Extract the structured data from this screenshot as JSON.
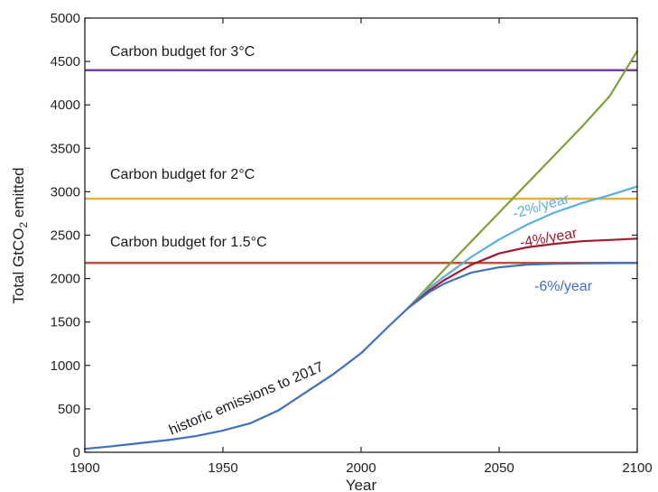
{
  "chart_data": {
    "type": "line",
    "xlabel": "Year",
    "ylabel": "Total GtCO",
    "ylabel_sub": "2",
    "ylabel_suffix": " emitted",
    "xlim": [
      1900,
      2100
    ],
    "ylim": [
      0,
      5000
    ],
    "xticks": [
      1900,
      1950,
      2000,
      2050,
      2100
    ],
    "yticks": [
      0,
      500,
      1000,
      1500,
      2000,
      2500,
      3000,
      3500,
      4000,
      4500,
      5000
    ],
    "grid": false,
    "budgets": [
      {
        "label": "Carbon budget for 3°C",
        "value": 4400,
        "color": "#7b3f98"
      },
      {
        "label": "Carbon budget for 2°C",
        "value": 2920,
        "color": "#e3b23c"
      },
      {
        "label": "Carbon budget for 1.5°C",
        "value": 2180,
        "color": "#c0533b"
      }
    ],
    "series": [
      {
        "name": "historic emissions to 2017",
        "color": "#3f6fbf",
        "x": [
          1900,
          1910,
          1920,
          1930,
          1940,
          1950,
          1960,
          1970,
          1980,
          1990,
          2000,
          2010,
          2017
        ],
        "y": [
          40,
          70,
          105,
          140,
          185,
          250,
          335,
          480,
          690,
          900,
          1140,
          1450,
          1660
        ]
      },
      {
        "name": "",
        "color": "#7fa03c",
        "x": [
          2017,
          2030,
          2040,
          2050,
          2060,
          2070,
          2080,
          2090,
          2100
        ],
        "y": [
          1660,
          2100,
          2430,
          2760,
          3090,
          3420,
          3750,
          4100,
          4620
        ]
      },
      {
        "name": "-2%/year",
        "color": "#5aaee0",
        "x": [
          2017,
          2025,
          2030,
          2040,
          2050,
          2060,
          2070,
          2080,
          2090,
          2100
        ],
        "y": [
          1660,
          1900,
          2020,
          2250,
          2450,
          2620,
          2760,
          2870,
          2960,
          3060
        ]
      },
      {
        "name": "-4%/year",
        "color": "#9e1c30",
        "x": [
          2017,
          2025,
          2030,
          2040,
          2050,
          2060,
          2070,
          2080,
          2090,
          2100
        ],
        "y": [
          1660,
          1870,
          1980,
          2160,
          2290,
          2360,
          2400,
          2430,
          2445,
          2460
        ]
      },
      {
        "name": "-6%/year",
        "color": "#3f6fbf",
        "x": [
          2017,
          2025,
          2030,
          2040,
          2050,
          2060,
          2070,
          2080,
          2090,
          2100
        ],
        "y": [
          1660,
          1850,
          1940,
          2070,
          2130,
          2160,
          2170,
          2175,
          2178,
          2180
        ]
      }
    ]
  }
}
